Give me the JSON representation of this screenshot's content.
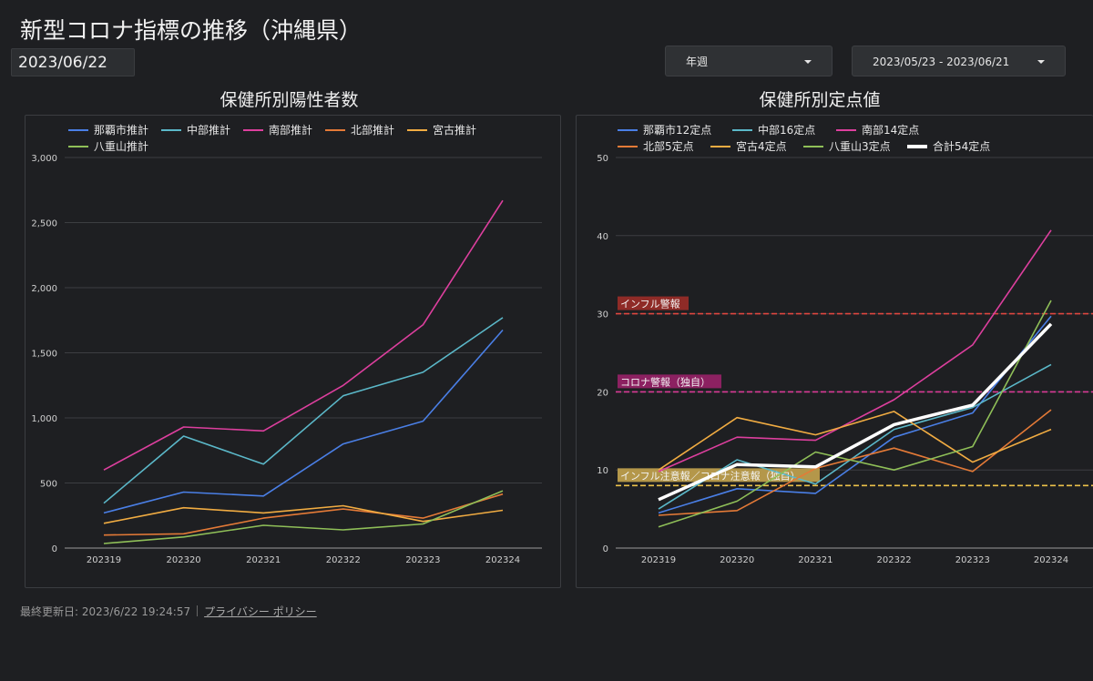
{
  "page": {
    "title": "新型コロナ指標の推移（沖縄県）",
    "report_date": "2023/06/22",
    "period_dropdown": "年週",
    "range_dropdown": "2023/05/23 - 2023/06/21",
    "footer": {
      "updated": "最終更新日: 2023/6/22 19:24:57",
      "privacy": "プライバシー ポリシー"
    }
  },
  "chart_data": [
    {
      "type": "line",
      "title": "保健所別陽性者数",
      "categories": [
        "202319",
        "202320",
        "202321",
        "202322",
        "202323",
        "202324"
      ],
      "ylim": [
        0,
        3000
      ],
      "yticks": [
        0,
        500,
        1000,
        1500,
        2000,
        2500,
        3000
      ],
      "ytick_labels": [
        "0",
        "500",
        "1,000",
        "1,500",
        "2,000",
        "2,500",
        "3,000"
      ],
      "series": [
        {
          "name": "那覇市推計",
          "color": "#4a7fe6",
          "values": [
            270,
            430,
            400,
            800,
            975,
            1675
          ]
        },
        {
          "name": "中部推計",
          "color": "#5bb8c9",
          "values": [
            345,
            860,
            645,
            1170,
            1350,
            1770
          ]
        },
        {
          "name": "南部推計",
          "color": "#dd3f9e",
          "values": [
            600,
            930,
            900,
            1250,
            1715,
            2670
          ]
        },
        {
          "name": "北部推計",
          "color": "#e47a37",
          "values": [
            100,
            110,
            230,
            300,
            230,
            415
          ]
        },
        {
          "name": "宮古推計",
          "color": "#f1ac42",
          "values": [
            190,
            310,
            270,
            325,
            205,
            290
          ]
        },
        {
          "name": "八重山推計",
          "color": "#8fbf58",
          "values": [
            35,
            85,
            175,
            140,
            185,
            440
          ]
        }
      ]
    },
    {
      "type": "line",
      "title": "保健所別定点値",
      "categories": [
        "202319",
        "202320",
        "202321",
        "202322",
        "202323",
        "202324"
      ],
      "ylim": [
        0,
        50
      ],
      "yticks": [
        0,
        10,
        20,
        30,
        40,
        50
      ],
      "ytick_labels": [
        "0",
        "10",
        "20",
        "30",
        "40",
        "50"
      ],
      "series": [
        {
          "name": "那覇市12定点",
          "color": "#4a7fe6",
          "values": [
            4.5,
            7.6,
            7.0,
            14.2,
            17.3,
            29.7
          ]
        },
        {
          "name": "中部16定点",
          "color": "#5bb8c9",
          "values": [
            5.0,
            11.3,
            8.2,
            15.2,
            18.0,
            23.5
          ]
        },
        {
          "name": "南部14定点",
          "color": "#dd3f9e",
          "values": [
            9.8,
            14.2,
            13.8,
            19.0,
            26.0,
            40.7
          ]
        },
        {
          "name": "北部5定点",
          "color": "#e47a37",
          "values": [
            4.2,
            4.8,
            10.2,
            12.8,
            9.8,
            17.7
          ]
        },
        {
          "name": "宮古4定点",
          "color": "#f1ac42",
          "values": [
            10.0,
            16.7,
            14.5,
            17.5,
            11.0,
            15.2
          ]
        },
        {
          "name": "八重山3定点",
          "color": "#8fbf58",
          "values": [
            2.7,
            6.0,
            12.3,
            10.0,
            13.0,
            31.7
          ]
        },
        {
          "name": "合計54定点",
          "color": "#ffffff",
          "values": [
            6.2,
            10.7,
            10.4,
            15.8,
            18.3,
            28.7
          ],
          "bold": true
        }
      ],
      "reference_lines": [
        {
          "label": "インフル警報",
          "value": 30,
          "color": "#e0473f",
          "label_bg": "#8f2b27"
        },
        {
          "label": "コロナ警報（独自）",
          "value": 20,
          "color": "#d93a95",
          "label_bg": "#8c2161"
        },
        {
          "label": "インフル注意報／コロナ注意報（独自）",
          "value": 8,
          "color": "#ecc24a",
          "label_bg": "#b4974a"
        }
      ]
    }
  ]
}
